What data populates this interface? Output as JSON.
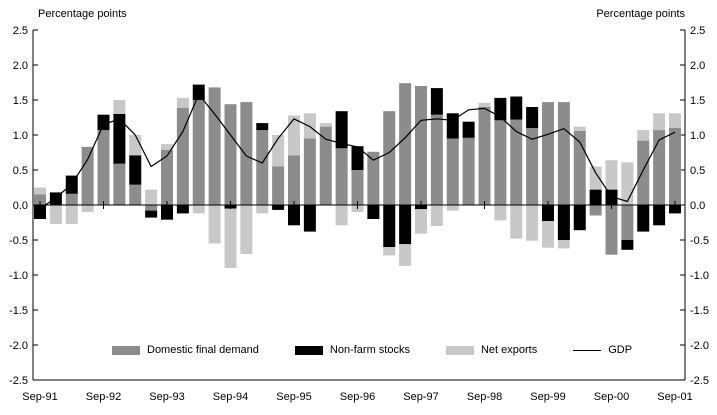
{
  "header": {
    "left_axis_title": "Percentage points",
    "right_axis_title": "Percentage points"
  },
  "chart_data": {
    "type": "bar",
    "subtype": "stacked-bars-with-line",
    "title": "",
    "xlabel": "",
    "ylabel": "Percentage points",
    "ylim": [
      -2.5,
      2.5
    ],
    "y_tick_step": 0.5,
    "y_tick_labels": [
      "2.5",
      "2.0",
      "1.5",
      "1.0",
      "0.5",
      "0.0",
      "-0.5",
      "-1.0",
      "-1.5",
      "-2.0",
      "-2.5"
    ],
    "grid": "off",
    "legend_position": "bottom-inside",
    "categories": [
      "Sep-91",
      "Dec-91",
      "Mar-92",
      "Jun-92",
      "Sep-92",
      "Dec-92",
      "Mar-93",
      "Jun-93",
      "Sep-93",
      "Dec-93",
      "Mar-94",
      "Jun-94",
      "Sep-94",
      "Dec-94",
      "Mar-95",
      "Jun-95",
      "Sep-95",
      "Dec-95",
      "Mar-96",
      "Jun-96",
      "Sep-96",
      "Dec-96",
      "Mar-97",
      "Jun-97",
      "Sep-97",
      "Dec-97",
      "Mar-98",
      "Jun-98",
      "Sep-98",
      "Dec-98",
      "Mar-99",
      "Jun-99",
      "Sep-99",
      "Dec-99",
      "Mar-00",
      "Jun-00",
      "Sep-00",
      "Dec-00",
      "Mar-01",
      "Jun-01",
      "Sep-01"
    ],
    "x_tick_labels": [
      "Sep-91",
      "Sep-92",
      "Sep-93",
      "Sep-94",
      "Sep-95",
      "Sep-96",
      "Sep-97",
      "Sep-98",
      "Sep-99",
      "Sep-00",
      "Sep-01"
    ],
    "x_tick_every": 4,
    "series": [
      {
        "name": "Domestic final demand",
        "color": "#8c8c8c",
        "values": [
          0.15,
          0.0,
          0.16,
          0.83,
          1.07,
          0.59,
          0.29,
          -0.08,
          0.79,
          1.39,
          1.5,
          1.68,
          1.44,
          1.47,
          1.07,
          0.55,
          0.71,
          0.95,
          1.12,
          0.81,
          0.5,
          0.76,
          1.34,
          1.74,
          1.7,
          1.29,
          0.95,
          0.96,
          1.4,
          1.21,
          1.22,
          1.1,
          1.47,
          1.47,
          1.06,
          -0.15,
          -0.71,
          -0.5,
          0.92,
          1.07,
          1.1
        ]
      },
      {
        "name": "Non-farm stocks",
        "color": "#000000",
        "values": [
          -0.2,
          0.18,
          0.26,
          0.0,
          0.22,
          0.71,
          0.42,
          -0.1,
          -0.21,
          -0.12,
          0.22,
          0.0,
          -0.05,
          0.0,
          0.1,
          -0.07,
          -0.29,
          -0.38,
          0.0,
          0.53,
          0.34,
          -0.2,
          -0.6,
          -0.56,
          -0.06,
          0.38,
          0.36,
          0.23,
          0.0,
          0.32,
          0.33,
          0.3,
          -0.23,
          -0.5,
          -0.36,
          0.22,
          0.22,
          -0.14,
          -0.38,
          -0.29,
          -0.12
        ]
      },
      {
        "name": "Net exports",
        "color": "#c8c8c8",
        "values": [
          0.1,
          -0.27,
          -0.27,
          -0.1,
          0.0,
          0.2,
          0.29,
          0.22,
          0.08,
          0.14,
          -0.12,
          -0.55,
          -0.85,
          -0.7,
          -0.12,
          0.45,
          0.57,
          0.36,
          0.05,
          -0.29,
          -0.1,
          0.0,
          -0.12,
          -0.31,
          -0.35,
          -0.3,
          -0.08,
          0.0,
          0.06,
          -0.22,
          -0.48,
          -0.51,
          -0.38,
          -0.12,
          0.06,
          0.33,
          0.42,
          0.61,
          0.15,
          0.24,
          0.21
        ]
      }
    ],
    "line_series": {
      "name": "GDP",
      "color": "#000000",
      "values": [
        -0.05,
        0.1,
        0.3,
        0.65,
        1.15,
        1.23,
        1.0,
        0.55,
        0.7,
        1.05,
        1.58,
        1.3,
        1.0,
        0.7,
        0.6,
        0.95,
        1.23,
        1.12,
        0.94,
        0.88,
        0.83,
        0.64,
        0.75,
        0.96,
        1.21,
        1.23,
        1.21,
        1.36,
        1.38,
        1.26,
        1.05,
        0.94,
        1.01,
        1.09,
        0.9,
        0.46,
        0.12,
        0.05,
        0.5,
        0.93,
        1.04
      ]
    },
    "legend": [
      {
        "label": "Domestic final demand",
        "swatch": "#8c8c8c"
      },
      {
        "label": "Non-farm stocks",
        "swatch": "#000000"
      },
      {
        "label": "Net exports",
        "swatch": "#c8c8c8"
      },
      {
        "label": "GDP",
        "swatch": "line"
      }
    ]
  }
}
